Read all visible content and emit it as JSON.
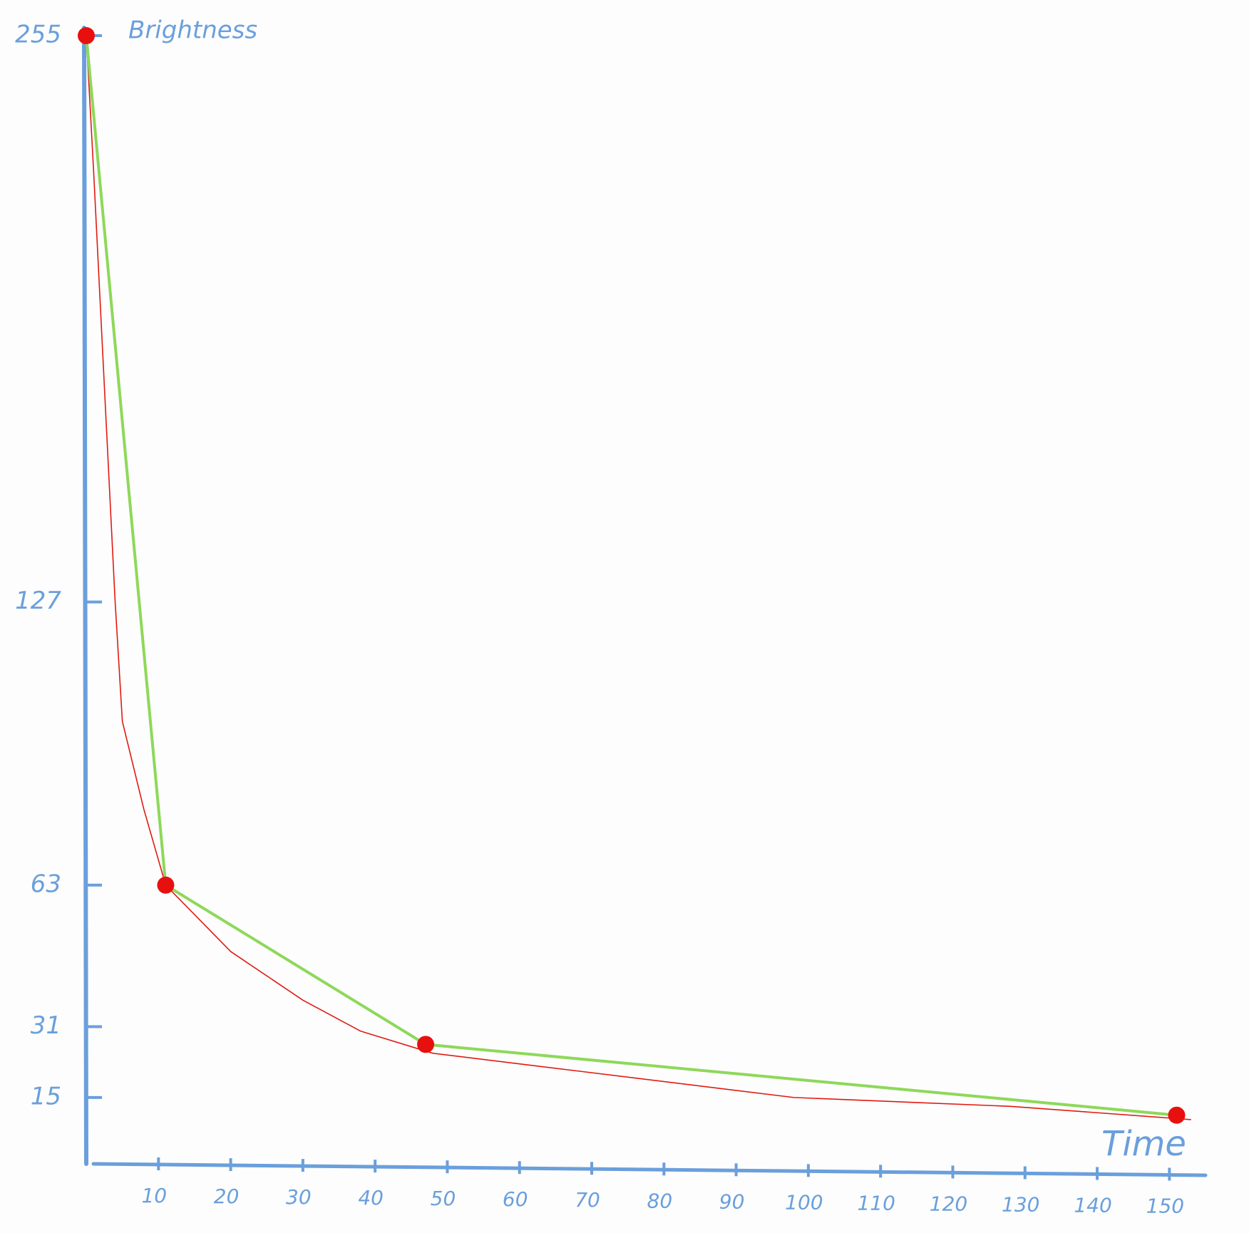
{
  "chart_data": {
    "type": "line",
    "y_label": "Brightness",
    "x_label": "Time",
    "xlim": [
      0,
      155
    ],
    "ylim": [
      0,
      260
    ],
    "xticks": [
      10,
      20,
      30,
      40,
      50,
      60,
      70,
      80,
      90,
      100,
      110,
      120,
      130,
      140,
      150
    ],
    "yticks": [
      15,
      31,
      63,
      127,
      255
    ],
    "axis_color": "#6a9fdc",
    "marker_color": "#e8100e",
    "series": [
      {
        "color": "#8ed85a",
        "width": 4,
        "markers": true,
        "x": [
          0,
          11,
          47,
          151
        ],
        "values": [
          255,
          63,
          27,
          11
        ]
      },
      {
        "color": "#e01a12",
        "width": 1.6,
        "markers": false,
        "x": [
          0,
          1,
          4,
          5,
          8,
          11,
          20,
          30,
          38,
          48,
          68,
          98,
          128,
          153
        ],
        "values": [
          255,
          225,
          127,
          100,
          80,
          63,
          48,
          37,
          30,
          25,
          21,
          15,
          13,
          10
        ]
      }
    ]
  }
}
